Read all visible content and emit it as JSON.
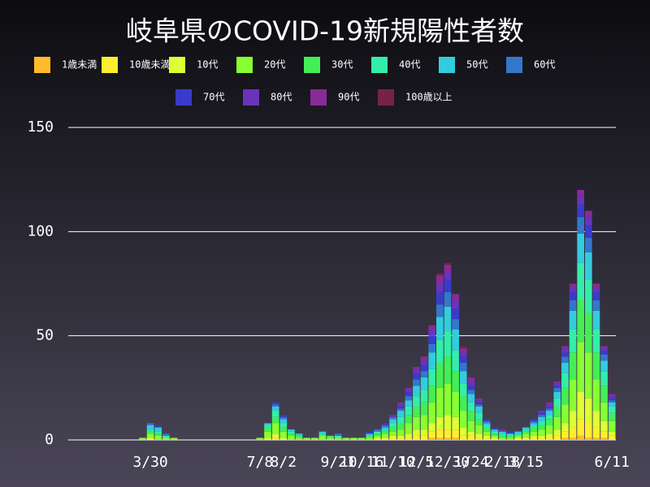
{
  "chart_data": {
    "type": "stacked-bar",
    "title": "岐阜県のCOVID-19新規陽性者数",
    "categories": [
      null,
      null,
      null,
      null,
      null,
      null,
      null,
      null,
      null,
      null,
      "3/30",
      null,
      null,
      null,
      null,
      null,
      null,
      null,
      null,
      null,
      null,
      null,
      null,
      null,
      "7/8",
      null,
      null,
      "8/2",
      null,
      null,
      null,
      null,
      null,
      null,
      "9/21",
      null,
      null,
      "10/16",
      null,
      null,
      null,
      "11/10",
      null,
      null,
      "12/5",
      null,
      null,
      null,
      "12/30",
      null,
      null,
      "1/24",
      null,
      null,
      null,
      "2/18",
      null,
      null,
      "3/15",
      null,
      null,
      null,
      null,
      null,
      null,
      null,
      null,
      null,
      null,
      "6/11"
    ],
    "ylim": [
      0,
      150
    ],
    "yticks": [
      0,
      50,
      100,
      150
    ],
    "grid": true,
    "series": [
      {
        "name": "1歳未満",
        "color": "#ffbb2a",
        "values": [
          0,
          0,
          0,
          0,
          0,
          0,
          0,
          0,
          0,
          0,
          0,
          0,
          0,
          0,
          0,
          0,
          0,
          0,
          0,
          0,
          0,
          0,
          0,
          0,
          0,
          0,
          0,
          0,
          0,
          0,
          0,
          0,
          0,
          0,
          0,
          0,
          0,
          0,
          0,
          0,
          0,
          0,
          0,
          0,
          0,
          0,
          1,
          1,
          1,
          1,
          0,
          0,
          0,
          0,
          0,
          0,
          0,
          0,
          0,
          0,
          0,
          0,
          0,
          1,
          1,
          2,
          1,
          1,
          1,
          0
        ]
      },
      {
        "name": "10歳未満",
        "color": "#ffee30",
        "values": [
          0,
          0,
          0,
          0,
          0,
          0,
          0,
          0,
          0,
          0,
          0,
          0,
          0,
          0,
          0,
          0,
          0,
          0,
          0,
          0,
          0,
          0,
          0,
          0,
          0,
          0,
          1,
          0,
          0,
          0,
          0,
          0,
          0,
          0,
          0,
          0,
          0,
          0,
          0,
          0,
          1,
          1,
          1,
          1,
          2,
          2,
          3,
          4,
          4,
          4,
          2,
          2,
          1,
          1,
          0,
          0,
          0,
          0,
          1,
          1,
          1,
          1,
          2,
          3,
          5,
          8,
          7,
          5,
          3,
          2
        ]
      },
      {
        "name": "10代",
        "color": "#ddff33",
        "values": [
          0,
          0,
          0,
          0,
          0,
          0,
          0,
          0,
          0,
          0,
          1,
          0,
          0,
          0,
          0,
          0,
          0,
          0,
          0,
          0,
          0,
          0,
          0,
          0,
          0,
          1,
          2,
          1,
          0,
          0,
          0,
          0,
          0,
          0,
          0,
          0,
          0,
          0,
          0,
          1,
          0,
          1,
          1,
          2,
          3,
          3,
          4,
          6,
          7,
          6,
          4,
          2,
          2,
          1,
          1,
          0,
          0,
          1,
          0,
          1,
          1,
          2,
          3,
          4,
          8,
          13,
          12,
          8,
          5,
          2
        ]
      },
      {
        "name": "20代",
        "color": "#88ff33",
        "values": [
          0,
          0,
          0,
          0,
          0,
          0,
          0,
          0,
          0,
          1,
          2,
          2,
          1,
          1,
          0,
          0,
          0,
          0,
          0,
          0,
          0,
          0,
          0,
          0,
          1,
          3,
          5,
          3,
          2,
          1,
          1,
          1,
          2,
          1,
          1,
          1,
          1,
          1,
          1,
          1,
          2,
          2,
          3,
          5,
          6,
          7,
          10,
          14,
          15,
          12,
          8,
          5,
          4,
          2,
          1,
          1,
          1,
          1,
          2,
          2,
          3,
          4,
          6,
          9,
          15,
          24,
          22,
          15,
          9,
          5
        ]
      },
      {
        "name": "30代",
        "color": "#44ee55",
        "values": [
          0,
          0,
          0,
          0,
          0,
          0,
          0,
          0,
          0,
          0,
          1,
          1,
          0,
          0,
          0,
          0,
          0,
          0,
          0,
          0,
          0,
          0,
          0,
          0,
          0,
          2,
          3,
          2,
          1,
          1,
          0,
          0,
          0,
          1,
          0,
          0,
          0,
          0,
          1,
          1,
          1,
          2,
          3,
          4,
          5,
          6,
          8,
          12,
          13,
          10,
          7,
          5,
          3,
          2,
          1,
          1,
          1,
          0,
          1,
          2,
          2,
          3,
          5,
          8,
          13,
          20,
          19,
          13,
          8,
          4
        ]
      },
      {
        "name": "40代",
        "color": "#33eeaa",
        "values": [
          0,
          0,
          0,
          0,
          0,
          0,
          0,
          0,
          0,
          0,
          1,
          1,
          1,
          0,
          0,
          0,
          0,
          0,
          0,
          0,
          0,
          0,
          0,
          0,
          0,
          1,
          3,
          2,
          1,
          0,
          0,
          0,
          1,
          0,
          1,
          0,
          0,
          0,
          0,
          1,
          1,
          2,
          3,
          4,
          5,
          6,
          8,
          11,
          12,
          10,
          6,
          4,
          3,
          1,
          1,
          1,
          1,
          1,
          1,
          1,
          2,
          2,
          4,
          7,
          11,
          18,
          16,
          11,
          7,
          3
        ]
      },
      {
        "name": "50代",
        "color": "#33ccdd",
        "values": [
          0,
          0,
          0,
          0,
          0,
          0,
          0,
          0,
          0,
          0,
          2,
          2,
          0,
          0,
          0,
          0,
          0,
          0,
          0,
          0,
          0,
          0,
          0,
          0,
          0,
          1,
          2,
          2,
          1,
          1,
          0,
          0,
          1,
          0,
          0,
          0,
          0,
          0,
          1,
          0,
          1,
          2,
          3,
          3,
          5,
          6,
          8,
          11,
          12,
          10,
          6,
          4,
          3,
          1,
          1,
          1,
          0,
          1,
          1,
          1,
          2,
          2,
          3,
          5,
          9,
          14,
          13,
          9,
          5,
          2
        ]
      },
      {
        "name": "60代",
        "color": "#3377cc",
        "values": [
          0,
          0,
          0,
          0,
          0,
          0,
          0,
          0,
          0,
          0,
          1,
          0,
          1,
          0,
          0,
          0,
          0,
          0,
          0,
          0,
          0,
          0,
          0,
          0,
          0,
          0,
          1,
          1,
          0,
          0,
          0,
          0,
          0,
          0,
          1,
          0,
          0,
          0,
          0,
          1,
          1,
          1,
          1,
          2,
          3,
          3,
          4,
          6,
          7,
          5,
          4,
          2,
          1,
          1,
          0,
          0,
          0,
          0,
          0,
          1,
          1,
          1,
          2,
          3,
          5,
          8,
          7,
          5,
          3,
          1
        ]
      },
      {
        "name": "70代",
        "color": "#3a3acc",
        "values": [
          0,
          0,
          0,
          0,
          0,
          0,
          0,
          0,
          0,
          0,
          0,
          1,
          0,
          0,
          0,
          0,
          0,
          0,
          0,
          0,
          0,
          0,
          0,
          0,
          0,
          0,
          1,
          1,
          0,
          0,
          0,
          0,
          0,
          0,
          0,
          0,
          0,
          0,
          1,
          0,
          1,
          0,
          1,
          2,
          3,
          3,
          4,
          6,
          6,
          5,
          3,
          2,
          1,
          1,
          1,
          0,
          1,
          0,
          0,
          1,
          1,
          1,
          1,
          2,
          4,
          6,
          6,
          4,
          2,
          1
        ]
      },
      {
        "name": "80代",
        "color": "#6a33bb",
        "values": [
          0,
          0,
          0,
          0,
          0,
          0,
          0,
          0,
          0,
          0,
          0,
          0,
          0,
          0,
          0,
          0,
          0,
          0,
          0,
          0,
          0,
          0,
          0,
          0,
          0,
          0,
          0,
          0,
          0,
          0,
          0,
          0,
          0,
          0,
          0,
          0,
          0,
          0,
          0,
          0,
          0,
          1,
          1,
          1,
          2,
          2,
          3,
          4,
          4,
          4,
          2,
          2,
          1,
          0,
          0,
          1,
          0,
          0,
          0,
          0,
          1,
          1,
          1,
          2,
          2,
          4,
          4,
          2,
          1,
          1
        ]
      },
      {
        "name": "90代",
        "color": "#8a2a99",
        "values": [
          0,
          0,
          0,
          0,
          0,
          0,
          0,
          0,
          0,
          0,
          0,
          0,
          0,
          0,
          0,
          0,
          0,
          0,
          0,
          0,
          0,
          0,
          0,
          0,
          0,
          0,
          0,
          0,
          0,
          0,
          0,
          0,
          0,
          0,
          0,
          0,
          0,
          0,
          0,
          0,
          0,
          0,
          1,
          1,
          1,
          2,
          2,
          4,
          3,
          3,
          2,
          2,
          1,
          0,
          0,
          0,
          0,
          0,
          0,
          0,
          0,
          1,
          1,
          1,
          2,
          3,
          3,
          2,
          1,
          1
        ]
      },
      {
        "name": "100歳以上",
        "color": "#772244",
        "values": [
          0,
          0,
          0,
          0,
          0,
          0,
          0,
          0,
          0,
          0,
          0,
          0,
          0,
          0,
          0,
          0,
          0,
          0,
          0,
          0,
          0,
          0,
          0,
          0,
          0,
          0,
          0,
          0,
          0,
          0,
          0,
          0,
          0,
          0,
          0,
          0,
          0,
          0,
          0,
          0,
          0,
          0,
          0,
          0,
          0,
          0,
          0,
          1,
          1,
          0,
          1,
          0,
          0,
          0,
          0,
          0,
          0,
          0,
          0,
          0,
          0,
          0,
          0,
          0,
          0,
          0,
          0,
          0,
          0,
          0
        ]
      }
    ]
  }
}
